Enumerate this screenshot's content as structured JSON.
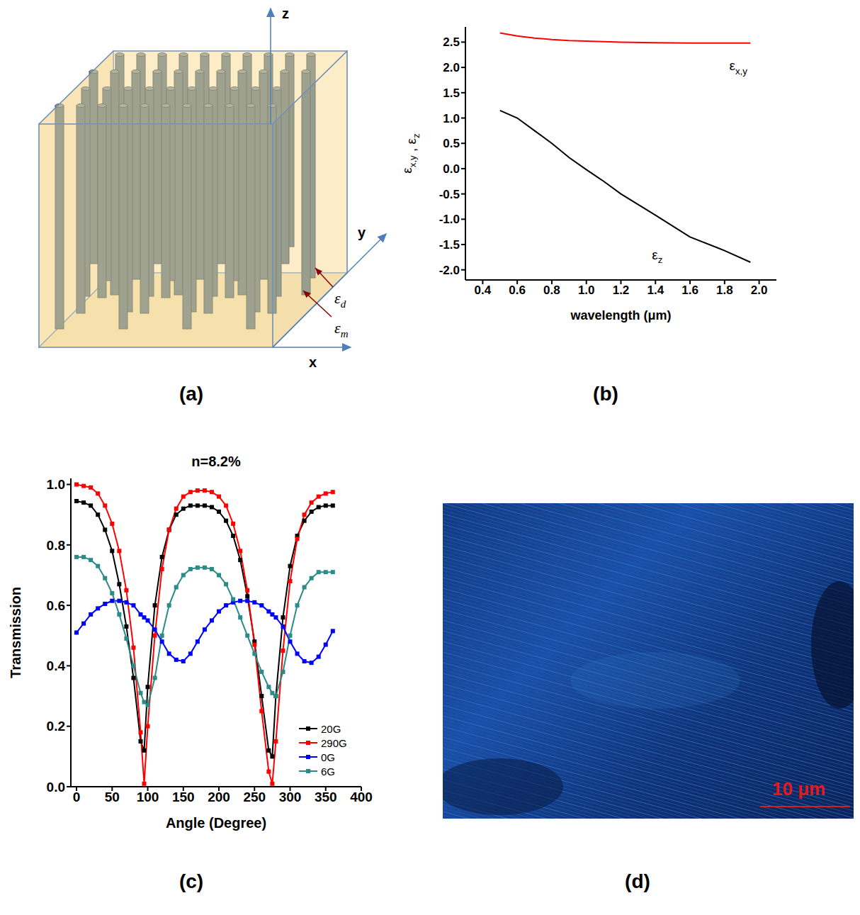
{
  "figure": {
    "panel_labels": [
      "(a)",
      "(b)",
      "(c)",
      "(d)"
    ]
  },
  "diagram": {
    "axes": [
      "x",
      "y",
      "z"
    ],
    "materials": [
      {
        "symbol": "ε",
        "subscript": "d"
      },
      {
        "symbol": "ε",
        "subscript": "m"
      }
    ]
  },
  "chart_data": [
    {
      "type": "line",
      "x_label": "wavelength (μm)",
      "y_label": "εx,y , εz",
      "x": [
        0.5,
        0.6,
        0.7,
        0.8,
        0.9,
        1.0,
        1.1,
        1.2,
        1.4,
        1.6,
        1.8,
        1.95
      ],
      "series": [
        {
          "name": "εx,y",
          "color": "#ff0000",
          "values": [
            2.68,
            2.62,
            2.58,
            2.55,
            2.53,
            2.52,
            2.51,
            2.5,
            2.49,
            2.48,
            2.48,
            2.48
          ]
        },
        {
          "name": "εz",
          "color": "#000000",
          "values": [
            1.15,
            1.0,
            0.75,
            0.5,
            0.22,
            -0.02,
            -0.25,
            -0.5,
            -0.92,
            -1.35,
            -1.62,
            -1.85
          ]
        }
      ],
      "xlim": [
        0.3,
        2.1
      ],
      "xticks": [
        0.4,
        0.6,
        0.8,
        {
          "value": 1,
          "label": "1.0"
        },
        1.2,
        1.4,
        1.6,
        1.8,
        {
          "value": 2,
          "label": "2.0"
        }
      ],
      "ylim": [
        -2.2,
        2.8
      ],
      "yticks": [
        {
          "value": -2,
          "label": "-2.0"
        },
        -1.5,
        {
          "value": -1,
          "label": "-1.0"
        },
        -0.5,
        {
          "value": 0,
          "label": "0.0"
        },
        0.5,
        {
          "value": 1,
          "label": "1.0"
        },
        1.5,
        {
          "value": 2,
          "label": "2.0"
        },
        2.5
      ],
      "grid": false
    },
    {
      "type": "line",
      "title": "n=8.2%",
      "x_label": "Angle (Degree)",
      "y_label": "Transmission",
      "x": [
        0,
        10,
        20,
        30,
        40,
        50,
        60,
        70,
        80,
        90,
        95,
        100,
        110,
        120,
        130,
        140,
        150,
        160,
        170,
        180,
        190,
        200,
        210,
        220,
        230,
        240,
        250,
        260,
        270,
        275,
        280,
        290,
        300,
        310,
        320,
        330,
        340,
        350,
        360
      ],
      "series": [
        {
          "name": "20G",
          "color": "#000000",
          "marker": "square",
          "values": [
            0.945,
            0.94,
            0.93,
            0.9,
            0.85,
            0.78,
            0.67,
            0.53,
            0.36,
            0.15,
            0.12,
            0.33,
            0.6,
            0.76,
            0.85,
            0.9,
            0.92,
            0.93,
            0.93,
            0.93,
            0.925,
            0.91,
            0.88,
            0.83,
            0.75,
            0.63,
            0.48,
            0.3,
            0.12,
            0.1,
            0.3,
            0.56,
            0.73,
            0.83,
            0.88,
            0.91,
            0.925,
            0.93,
            0.93
          ]
        },
        {
          "name": "290G",
          "color": "#ff0000",
          "marker": "square",
          "values": [
            1.0,
            0.995,
            0.99,
            0.97,
            0.93,
            0.87,
            0.78,
            0.65,
            0.46,
            0.18,
            0.01,
            0.2,
            0.5,
            0.72,
            0.85,
            0.92,
            0.96,
            0.975,
            0.98,
            0.98,
            0.975,
            0.96,
            0.93,
            0.87,
            0.78,
            0.65,
            0.47,
            0.25,
            0.05,
            0.01,
            0.15,
            0.45,
            0.68,
            0.82,
            0.9,
            0.94,
            0.96,
            0.97,
            0.975
          ]
        },
        {
          "name": "0G",
          "color": "#0000ff",
          "marker": "square",
          "values": [
            0.51,
            0.54,
            0.57,
            0.59,
            0.605,
            0.615,
            0.615,
            0.61,
            0.6,
            0.57,
            0.56,
            0.55,
            0.52,
            0.48,
            0.44,
            0.42,
            0.415,
            0.44,
            0.48,
            0.52,
            0.55,
            0.58,
            0.6,
            0.61,
            0.615,
            0.615,
            0.61,
            0.6,
            0.58,
            0.57,
            0.56,
            0.53,
            0.48,
            0.44,
            0.415,
            0.41,
            0.43,
            0.47,
            0.515
          ]
        },
        {
          "name": "6G",
          "color": "#2b8b86",
          "marker": "square",
          "values": [
            0.76,
            0.76,
            0.75,
            0.73,
            0.69,
            0.64,
            0.57,
            0.49,
            0.4,
            0.31,
            0.28,
            0.27,
            0.36,
            0.5,
            0.6,
            0.66,
            0.7,
            0.72,
            0.725,
            0.725,
            0.72,
            0.7,
            0.67,
            0.62,
            0.56,
            0.5,
            0.44,
            0.38,
            0.33,
            0.31,
            0.3,
            0.38,
            0.5,
            0.6,
            0.66,
            0.69,
            0.71,
            0.71,
            0.71
          ]
        }
      ],
      "xlim": [
        -8,
        400
      ],
      "xticks": [
        0,
        50,
        100,
        150,
        200,
        250,
        300,
        350,
        400
      ],
      "ylim": [
        0,
        1.02
      ],
      "yticks": [
        {
          "value": 0,
          "label": "0.0"
        },
        0.2,
        0.4,
        0.6,
        0.8,
        {
          "value": 1,
          "label": "1.0"
        }
      ],
      "legend": "lower right",
      "grid": false
    }
  ],
  "image": {
    "scale_bar": "10 μm"
  }
}
